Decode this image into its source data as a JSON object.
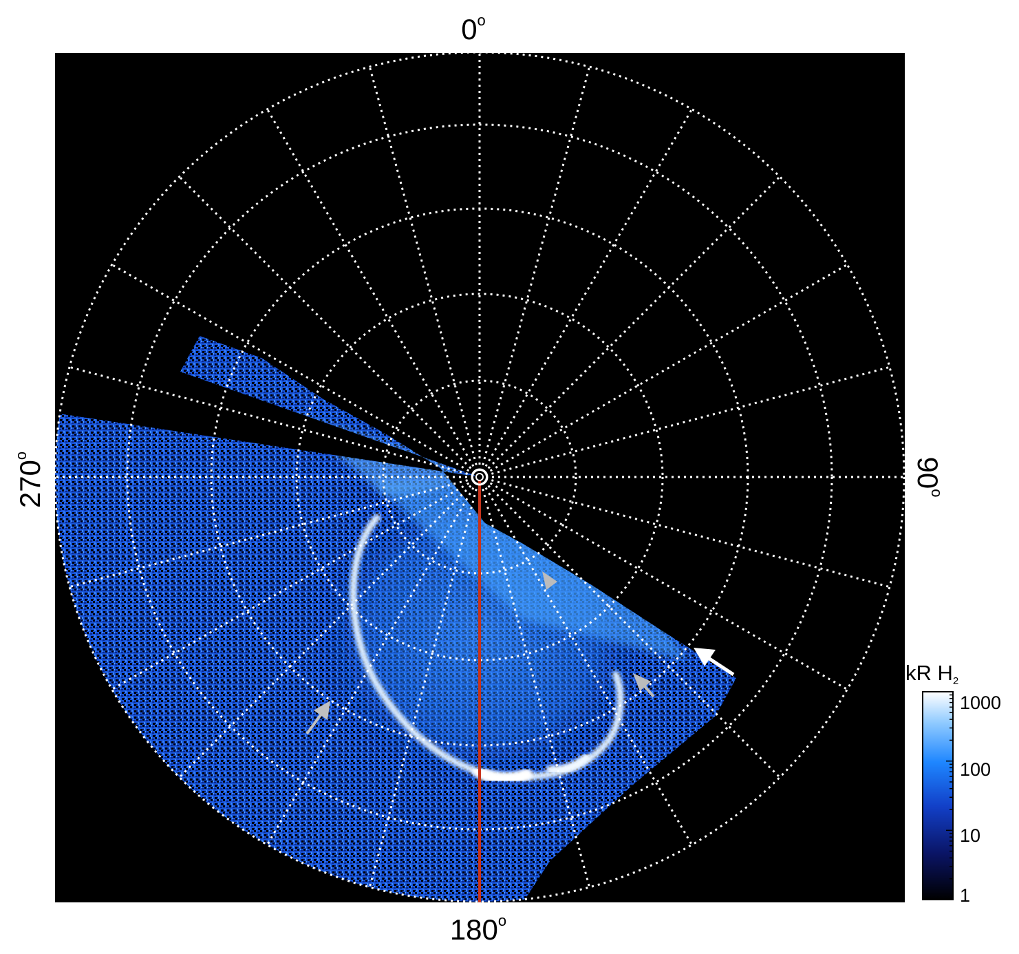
{
  "polar_plot": {
    "longitude_labels": {
      "top": "0",
      "right": "90",
      "bottom": "180",
      "left": "270",
      "degree_symbol": "o"
    },
    "grid_style": "white dotted",
    "meridian_step_deg": 15,
    "colors": {
      "background": "#000000",
      "grid": "#ffffff",
      "central_meridian": "#c8341c",
      "aurora_low": "#0a1f8a",
      "aurora_mid": "#1f7dff",
      "aurora_high": "#e6f4ff",
      "arrow_white": "#ffffff",
      "arrow_gray": "#c0c0c0"
    },
    "annotations": [
      {
        "name": "white-arrow",
        "color": "white"
      },
      {
        "name": "gray-arrow-left",
        "color": "gray"
      },
      {
        "name": "gray-arrow-right-upper",
        "color": "gray"
      },
      {
        "name": "gray-arrow-right-lower",
        "color": "gray"
      }
    ]
  },
  "colorbar": {
    "title": "kR H",
    "title_subscript": "2",
    "tick_labels": [
      "1000",
      "100",
      "10",
      "1"
    ],
    "scale": "log",
    "range": [
      1,
      1000
    ]
  }
}
